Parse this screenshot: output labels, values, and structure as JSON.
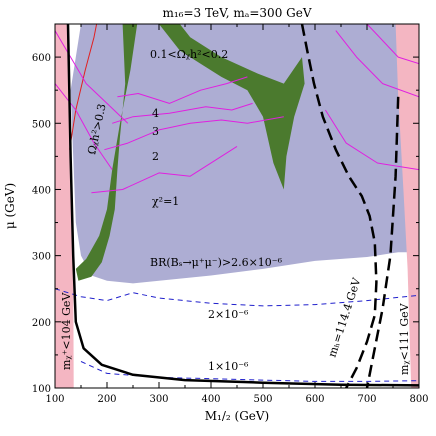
{
  "chart_data": {
    "type": "area",
    "title": "m₁₆=3 TeV, mₐ=300 GeV",
    "xlabel": "M₁/₂ (GeV)",
    "ylabel": "μ (GeV)",
    "xlim": [
      100,
      800
    ],
    "ylim": [
      100,
      650
    ],
    "xticks": [
      100,
      200,
      300,
      400,
      500,
      600,
      700,
      800
    ],
    "yticks": [
      100,
      200,
      300,
      400,
      500,
      600
    ],
    "grid": false,
    "colors": {
      "excluded": "#f4b6c2",
      "bs_region": "#adadd3",
      "relic": "#4b7a2e",
      "chi2": "#e020e0",
      "neutralino_lep": "#e02020",
      "bs_contour": "#2020cc",
      "boundary": "#000000"
    },
    "regions": [
      {
        "name": "bs-excluded",
        "label": "BR(Bₛ→μ⁺μ⁻)>2.6×10⁻⁶",
        "points": [
          [
            150,
            650
          ],
          [
            800,
            650
          ],
          [
            800,
            305
          ],
          [
            760,
            305
          ],
          [
            700,
            298
          ],
          [
            600,
            292
          ],
          [
            500,
            280
          ],
          [
            400,
            270
          ],
          [
            300,
            262
          ],
          [
            250,
            258
          ],
          [
            200,
            262
          ],
          [
            170,
            270
          ],
          [
            150,
            300
          ],
          [
            140,
            350
          ],
          [
            135,
            450
          ],
          [
            130,
            550
          ]
        ]
      },
      {
        "name": "relic-band-left",
        "label": "0.1<Ωᵪh²<0.2",
        "points": [
          [
            230,
            650
          ],
          [
            258,
            650
          ],
          [
            245,
            580
          ],
          [
            225,
            500
          ],
          [
            210,
            430
          ],
          [
            200,
            370
          ],
          [
            185,
            330
          ],
          [
            160,
            295
          ],
          [
            140,
            280
          ],
          [
            145,
            262
          ],
          [
            170,
            268
          ],
          [
            190,
            290
          ],
          [
            205,
            330
          ],
          [
            215,
            370
          ],
          [
            220,
            430
          ],
          [
            225,
            480
          ],
          [
            235,
            560
          ]
        ]
      },
      {
        "name": "relic-band-right",
        "label": "",
        "points": [
          [
            300,
            650
          ],
          [
            340,
            650
          ],
          [
            360,
            630
          ],
          [
            420,
            600
          ],
          [
            490,
            575
          ],
          [
            540,
            560
          ],
          [
            575,
            600
          ],
          [
            580,
            560
          ],
          [
            560,
            510
          ],
          [
            545,
            450
          ],
          [
            540,
            400
          ],
          [
            520,
            440
          ],
          [
            500,
            510
          ],
          [
            470,
            550
          ],
          [
            420,
            570
          ],
          [
            380,
            590
          ],
          [
            340,
            610
          ]
        ]
      },
      {
        "name": "excluded-left",
        "label": "mᵪ⁺<104 GeV",
        "points": [
          [
            100,
            100
          ],
          [
            136,
            100
          ],
          [
            135,
            300
          ],
          [
            130,
            450
          ],
          [
            125,
            650
          ],
          [
            100,
            650
          ]
        ]
      },
      {
        "name": "excluded-right",
        "label": "mᵪ<111 GeV",
        "points": [
          [
            800,
            100
          ],
          [
            800,
            650
          ],
          [
            755,
            650
          ],
          [
            760,
            540
          ],
          [
            770,
            400
          ],
          [
            778,
            280
          ],
          [
            785,
            100
          ]
        ]
      }
    ],
    "lines": [
      {
        "name": "neutralino-lep-boundary",
        "label": "Ωᵪh²>0.3",
        "style": "solid",
        "color": "neutralino_lep",
        "points": [
          [
            128,
            460
          ],
          [
            140,
            520
          ],
          [
            158,
            580
          ],
          [
            175,
            630
          ],
          [
            180,
            650
          ]
        ]
      },
      {
        "name": "chi2-1",
        "label": "χ²=1",
        "style": "solid",
        "color": "chi2",
        "points": [
          [
            170,
            395
          ],
          [
            230,
            400
          ],
          [
            300,
            425
          ],
          [
            360,
            420
          ],
          [
            410,
            445
          ],
          [
            450,
            465
          ]
        ]
      },
      {
        "name": "chi2-2",
        "label": "2",
        "style": "solid",
        "color": "chi2",
        "points": [
          [
            195,
            460
          ],
          [
            240,
            470
          ],
          [
            300,
            490
          ],
          [
            360,
            500
          ],
          [
            420,
            505
          ],
          [
            470,
            500
          ],
          [
            540,
            510
          ]
        ]
      },
      {
        "name": "chi2-3",
        "label": "3",
        "style": "solid",
        "color": "chi2",
        "points": [
          [
            210,
            500
          ],
          [
            250,
            510
          ],
          [
            320,
            515
          ],
          [
            390,
            525
          ],
          [
            440,
            520
          ],
          [
            480,
            530
          ]
        ]
      },
      {
        "name": "chi2-4",
        "label": "4",
        "style": "solid",
        "color": "chi2",
        "points": [
          [
            220,
            540
          ],
          [
            260,
            545
          ],
          [
            320,
            530
          ],
          [
            380,
            550
          ],
          [
            430,
            560
          ],
          [
            470,
            570
          ]
        ]
      },
      {
        "name": "chi2-outer-1",
        "label": "",
        "style": "solid",
        "color": "chi2",
        "points": [
          [
            100,
            640
          ],
          [
            130,
            600
          ],
          [
            160,
            560
          ],
          [
            200,
            530
          ],
          [
            240,
            500
          ]
        ]
      },
      {
        "name": "chi2-outer-2",
        "label": "",
        "style": "solid",
        "color": "chi2",
        "points": [
          [
            100,
            560
          ],
          [
            140,
            520
          ],
          [
            175,
            470
          ],
          [
            210,
            430
          ]
        ]
      },
      {
        "name": "chi2-outer-3",
        "label": "",
        "style": "solid",
        "color": "chi2",
        "points": [
          [
            640,
            640
          ],
          [
            680,
            600
          ],
          [
            730,
            560
          ],
          [
            800,
            540
          ]
        ]
      },
      {
        "name": "chi2-outer-4",
        "label": "",
        "style": "solid",
        "color": "chi2",
        "points": [
          [
            620,
            520
          ],
          [
            660,
            470
          ],
          [
            720,
            440
          ],
          [
            800,
            430
          ]
        ]
      },
      {
        "name": "chi2-outer-5",
        "label": "",
        "style": "solid",
        "color": "chi2",
        "points": [
          [
            700,
            650
          ],
          [
            760,
            600
          ],
          [
            800,
            590
          ]
        ]
      },
      {
        "name": "bs-2e-6",
        "label": "2×10⁻⁶",
        "style": "dashed",
        "color": "bs_contour",
        "points": [
          [
            100,
            250
          ],
          [
            150,
            238
          ],
          [
            200,
            232
          ],
          [
            250,
            244
          ],
          [
            300,
            236
          ],
          [
            400,
            228
          ],
          [
            500,
            224
          ],
          [
            600,
            226
          ],
          [
            700,
            232
          ],
          [
            800,
            240
          ]
        ]
      },
      {
        "name": "bs-1e-6",
        "label": "1×10⁻⁶",
        "style": "dashed",
        "color": "bs_contour",
        "points": [
          [
            150,
            140
          ],
          [
            200,
            122
          ],
          [
            300,
            116
          ],
          [
            400,
            114
          ],
          [
            500,
            112
          ],
          [
            600,
            110
          ],
          [
            700,
            110
          ],
          [
            800,
            111
          ]
        ]
      },
      {
        "name": "mh-114",
        "label": "mₕ=114.4 GeV",
        "style": "dashed-thick",
        "color": "boundary",
        "points": [
          [
            575,
            650
          ],
          [
            585,
            610
          ],
          [
            598,
            560
          ],
          [
            615,
            510
          ],
          [
            640,
            460
          ],
          [
            665,
            420
          ],
          [
            690,
            390
          ],
          [
            705,
            360
          ],
          [
            715,
            320
          ],
          [
            718,
            260
          ],
          [
            715,
            210
          ],
          [
            700,
            170
          ],
          [
            680,
            130
          ],
          [
            660,
            100
          ]
        ]
      },
      {
        "name": "mh-111",
        "label": "",
        "style": "dashed-thick",
        "color": "boundary",
        "points": [
          [
            760,
            540
          ],
          [
            755,
            420
          ],
          [
            745,
            300
          ],
          [
            730,
            220
          ],
          [
            710,
            140
          ],
          [
            700,
            100
          ]
        ]
      },
      {
        "name": "excl-left-boundary",
        "label": "",
        "style": "solid-thick",
        "color": "boundary",
        "points": [
          [
            125,
            650
          ],
          [
            130,
            450
          ],
          [
            135,
            300
          ],
          [
            140,
            200
          ],
          [
            155,
            160
          ],
          [
            190,
            135
          ],
          [
            250,
            120
          ],
          [
            350,
            112
          ],
          [
            500,
            108
          ],
          [
            650,
            105
          ],
          [
            800,
            104
          ]
        ]
      }
    ],
    "annotations": [
      {
        "name": "relic-label",
        "text": "0.1<Ωᵪh²<0.2"
      },
      {
        "name": "omega-label",
        "text": "Ωᵪh²>0.3"
      },
      {
        "name": "chi2-label-4",
        "text": "4"
      },
      {
        "name": "chi2-label-3",
        "text": "3"
      },
      {
        "name": "chi2-label-2",
        "text": "2"
      },
      {
        "name": "chi2-label-1",
        "text": "χ²=1"
      },
      {
        "name": "bs-label",
        "text": "BR(Bₛ→μ⁺μ⁻)>2.6×10⁻⁶"
      },
      {
        "name": "bs-2-label",
        "text": "2×10⁻⁶"
      },
      {
        "name": "bs-1-label",
        "text": "1×10⁻⁶"
      },
      {
        "name": "mchi-left-label",
        "text": "mᵪ⁺<104 GeV"
      },
      {
        "name": "mh-label",
        "text": "mₕ=114.4 GeV"
      },
      {
        "name": "mchi-right-label",
        "text": "mᵪ<111 GeV"
      }
    ]
  }
}
